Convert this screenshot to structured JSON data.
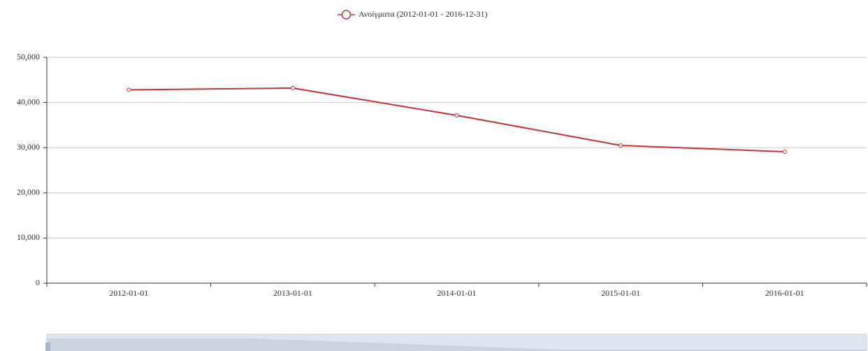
{
  "chart_data": {
    "type": "line",
    "categories": [
      "2012-01-01",
      "2013-01-01",
      "2014-01-01",
      "2015-01-01",
      "2016-01-01"
    ],
    "series": [
      {
        "name": "Ανοίγματα (2012-01-01 - 2016-12-31)",
        "color": "#c23531",
        "values": [
          42800,
          43200,
          37150,
          30500,
          29100
        ]
      }
    ],
    "ylim": [
      0,
      50000
    ],
    "yticks": [
      0,
      {
        "value": 10000,
        "label": "10,000"
      },
      {
        "value": 20000,
        "label": "20,000"
      },
      {
        "value": 30000,
        "label": "30,000"
      },
      {
        "value": 40000,
        "label": "40,000"
      },
      {
        "value": 50000,
        "label": "50,000"
      }
    ],
    "grid": true,
    "legend": "top"
  }
}
